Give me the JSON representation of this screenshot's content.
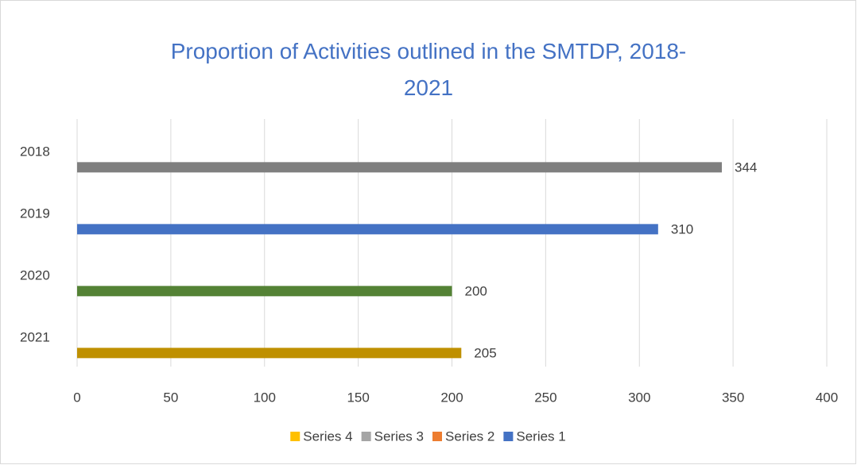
{
  "chart_data": {
    "type": "bar",
    "orientation": "horizontal",
    "title": "Proportion of Activities outlined in the SMTDP, 2018-2021",
    "categories": [
      "2018",
      "2019",
      "2020",
      "2021"
    ],
    "values": [
      344,
      310,
      200,
      205
    ],
    "colors": [
      "#7f7f7f",
      "#4472c4",
      "#548235",
      "#bf9000"
    ],
    "xlim": [
      0,
      400
    ],
    "xticks": [
      0,
      50,
      100,
      150,
      200,
      250,
      300,
      350,
      400
    ],
    "grid": true,
    "legend_position": "bottom",
    "legend": [
      {
        "name": "Series 4",
        "color": "#ffc000"
      },
      {
        "name": "Series 3",
        "color": "#a5a5a5"
      },
      {
        "name": "Series 2",
        "color": "#ed7d31"
      },
      {
        "name": "Series 1",
        "color": "#4472c4"
      }
    ]
  }
}
